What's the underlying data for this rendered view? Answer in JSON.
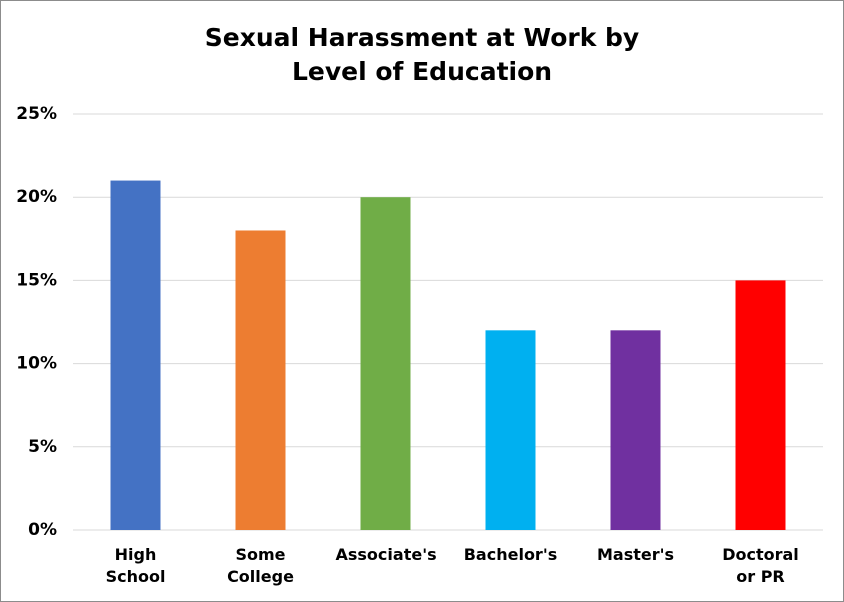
{
  "chart_data": {
    "type": "bar",
    "title": "Sexual Harassment at Work by Level of Education",
    "categories": [
      "High School",
      "Some College",
      "Associate's",
      "Bachelor's",
      "Master's",
      "Doctoral or PR"
    ],
    "values": [
      21,
      18,
      20,
      12,
      12,
      15
    ],
    "colors": [
      "#4472c4",
      "#ed7d31",
      "#70ad47",
      "#00b0f0",
      "#7030a0",
      "#ff0000"
    ],
    "ylim": [
      0,
      25
    ],
    "yticks": [
      {
        "value": 0,
        "label": "0%"
      },
      {
        "value": 5,
        "label": "5%"
      },
      {
        "value": 10,
        "label": "10%"
      },
      {
        "value": 15,
        "label": "15%"
      },
      {
        "value": 20,
        "label": "20%"
      },
      {
        "value": 25,
        "label": "25%"
      }
    ],
    "grid": true
  }
}
